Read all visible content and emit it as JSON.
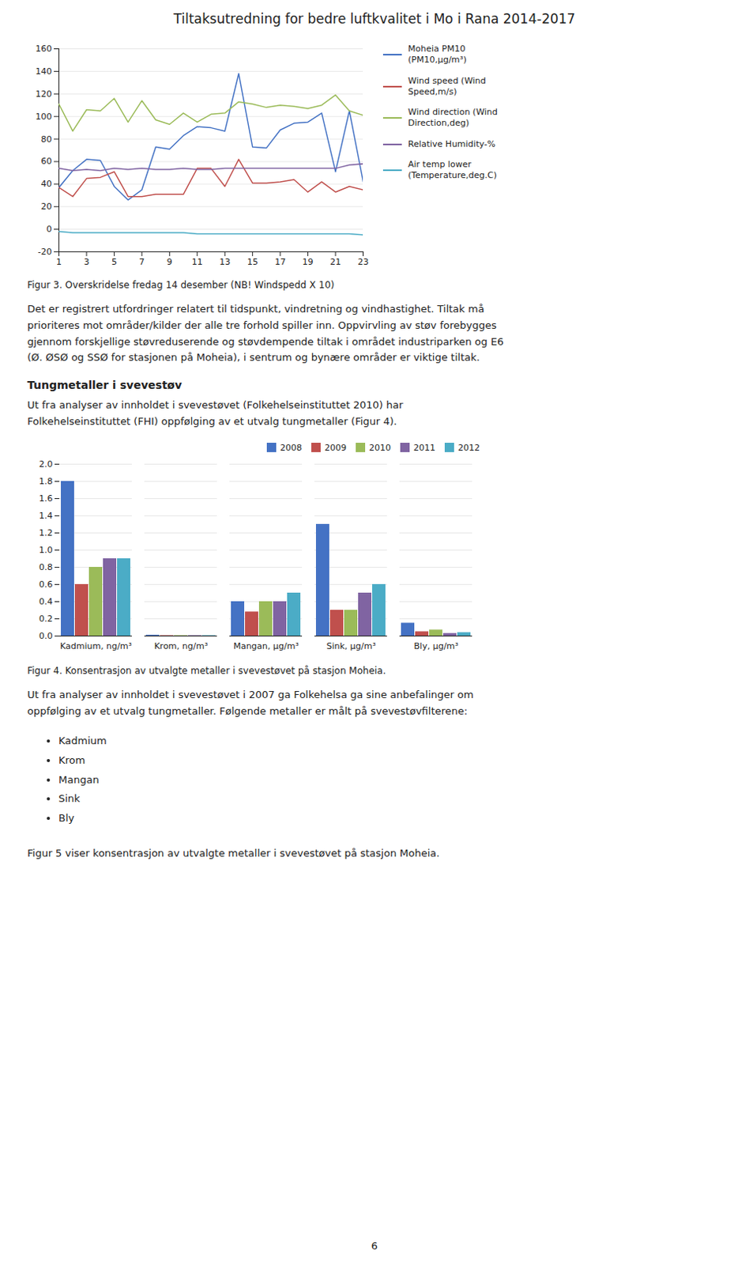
{
  "title": "Tiltaksutredning for bedre luftkvalitet i Mo i Rana 2014-2017",
  "chart_data": [
    {
      "type": "line",
      "caption": "Figur 3. Overskridelse fredag 14 desember (NB! Windspedd X 10)",
      "x": [
        1,
        2,
        3,
        4,
        5,
        6,
        7,
        8,
        9,
        10,
        11,
        12,
        13,
        14,
        15,
        16,
        17,
        18,
        19,
        20,
        21,
        22,
        23
      ],
      "series": [
        {
          "name": "Moheia PM10\n(PM10,μg/m³)",
          "color": "#4472C4",
          "values": [
            37,
            52,
            62,
            61,
            38,
            26,
            35,
            73,
            71,
            83,
            91,
            90,
            87,
            138,
            73,
            72,
            88,
            94,
            95,
            103,
            51,
            105,
            42
          ]
        },
        {
          "name": "Wind speed (Wind\nSpeed,m/s)",
          "color": "#C0504D",
          "values": [
            37,
            29,
            45,
            46,
            51,
            29,
            29,
            31,
            31,
            31,
            54,
            54,
            38,
            62,
            41,
            41,
            42,
            44,
            33,
            42,
            33,
            38,
            35
          ]
        },
        {
          "name": "Wind direction (Wind\nDirection,deg)",
          "color": "#9BBB59",
          "values": [
            111,
            87,
            106,
            105,
            116,
            95,
            114,
            97,
            93,
            103,
            95,
            102,
            103,
            113,
            111,
            108,
            110,
            109,
            107,
            110,
            119,
            105,
            101
          ]
        },
        {
          "name": "Relative Humidity-%",
          "color": "#8064A2",
          "values": [
            54,
            52,
            53,
            52,
            54,
            53,
            54,
            53,
            53,
            54,
            53,
            53,
            54,
            54,
            54,
            54,
            54,
            54,
            54,
            54,
            54,
            57,
            58
          ]
        },
        {
          "name": "Air temp lower\n(Temperature,deg.C)",
          "color": "#4BACC6",
          "values": [
            -2,
            -3,
            -3,
            -3,
            -3,
            -3,
            -3,
            -3,
            -3,
            -3,
            -4,
            -4,
            -4,
            -4,
            -4,
            -4,
            -4,
            -4,
            -4,
            -4,
            -4,
            -4,
            -5
          ]
        }
      ],
      "xlim": [
        1,
        23
      ],
      "xticks": [
        1,
        3,
        5,
        7,
        9,
        11,
        13,
        15,
        17,
        19,
        21,
        23
      ],
      "ylim": [
        -20,
        160
      ],
      "yticks": [
        -20,
        0,
        20,
        40,
        60,
        80,
        100,
        120,
        140,
        160
      ],
      "grid": "y",
      "legend": "right"
    },
    {
      "type": "bar",
      "caption": "Figur 4. Konsentrasjon av utvalgte metaller i svevestøvet på stasjon Moheia.",
      "categories": [
        "Kadmium, ng/m³",
        "Krom, ng/m³",
        "Mangan, μg/m³",
        "Sink, μg/m³",
        "Bly, μg/m³"
      ],
      "series": [
        {
          "name": "2008",
          "color": "#4472C4",
          "values": [
            1.8,
            0.01,
            0.4,
            1.3,
            0.15
          ]
        },
        {
          "name": "2009",
          "color": "#C0504D",
          "values": [
            0.6,
            0.005,
            0.28,
            0.3,
            0.05
          ]
        },
        {
          "name": "2010",
          "color": "#9BBB59",
          "values": [
            0.8,
            0.005,
            0.4,
            0.3,
            0.07
          ]
        },
        {
          "name": "2011",
          "color": "#8064A2",
          "values": [
            0.9,
            0.005,
            0.4,
            0.5,
            0.03
          ]
        },
        {
          "name": "2012",
          "color": "#4BACC6",
          "values": [
            0.9,
            0.005,
            0.5,
            0.6,
            0.04
          ]
        }
      ],
      "ylim": [
        0,
        2
      ],
      "yticks": [
        {
          "value": 0,
          "label": "0.0"
        },
        {
          "value": 0.2,
          "label": "0.2"
        },
        {
          "value": 0.4,
          "label": "0.4"
        },
        {
          "value": 0.6,
          "label": "0.6"
        },
        {
          "value": 0.8,
          "label": "0.8"
        },
        {
          "value": 1.0,
          "label": "1.0"
        },
        {
          "value": 1.2,
          "label": "1.2"
        },
        {
          "value": 1.4,
          "label": "1.4"
        },
        {
          "value": 1.6,
          "label": "1.6"
        },
        {
          "value": 1.8,
          "label": "1.8"
        },
        {
          "value": 2.0,
          "label": "2.0"
        }
      ],
      "grid": "y",
      "legend": "upper right"
    }
  ],
  "paragraph1": "Det er registrert utfordringer relatert til tidspunkt, vindretning og vindhastighet. Tiltak må\nprioriteres mot områder/kilder der alle tre forhold spiller inn. Oppvirvling av støv forebygges\ngjennom forskjellige støvreduserende og støvdempende tiltak i området industriparken og E6\n(Ø. ØSØ og SSØ for stasjonen på Moheia), i sentrum og bynære områder er viktige tiltak.",
  "section_title": "Tungmetaller i svevestøv",
  "section_body": "Ut fra analyser av innholdet i svevestøvet (Folkehelseinstituttet 2010) har\nFolkehelseinstituttet (FHI) oppfølging av et utvalg tungmetaller (Figur 4).",
  "paragraph2": "Ut fra analyser av innholdet i svevestøvet i 2007 ga Folkehelsa ga sine anbefalinger om\noppfølging av et utvalg tungmetaller. Følgende metaller er målt på svevestøvfilterene:",
  "bullet_items": [
    "Kadmium",
    "Krom",
    "Mangan",
    "Sink",
    "Bly"
  ],
  "figur5_caption": "Figur 5 viser konsentrasjon av utvalgte metaller i svevestøvet på stasjon Moheia.",
  "page_number": "6"
}
